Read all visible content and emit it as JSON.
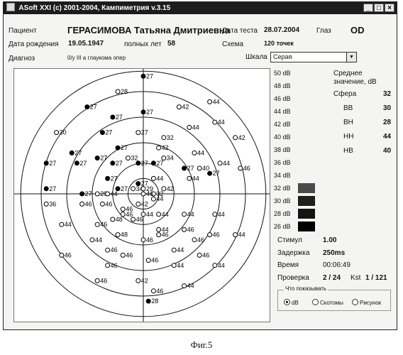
{
  "window": {
    "title": "ASoft XXI (c) 2001-2004, Кампиметрия v.3.15"
  },
  "patient": {
    "label": "Пациент",
    "name": "ГЕРАСИМОВА Татьяна Дмитриевна",
    "birth_label": "Дата рождения",
    "birth_date": "19.05.1947",
    "age_label": "полных лет",
    "age": "58",
    "diag_label": "Диагноз",
    "diag_value": "0/у III а глаукома опер"
  },
  "test": {
    "date_label": "Дата теста",
    "date": "28.07.2004",
    "eye_label": "Глаз",
    "eye": "OD",
    "scheme_label": "Схема",
    "scheme": "120 точек",
    "scale_label": "Шкала",
    "scale_value": "Серая"
  },
  "scale": [
    {
      "label": "50 dB"
    },
    {
      "label": "48 dB"
    },
    {
      "label": "46 dB"
    },
    {
      "label": "44 dB"
    },
    {
      "label": "42 dB"
    },
    {
      "label": "40 dB"
    },
    {
      "label": "38 dB"
    },
    {
      "label": "36 dB"
    },
    {
      "label": "34 dB"
    },
    {
      "label": "32 dB",
      "color": "#4a4a4a"
    },
    {
      "label": "30 dB",
      "color": "#1e1e1e"
    },
    {
      "label": "28 dB",
      "color": "#141414"
    },
    {
      "label": "26 dB",
      "color": "#000000"
    }
  ],
  "stats": {
    "header": "Среднее значение, dB",
    "rows": [
      {
        "label": "Сфера",
        "value": "32"
      },
      {
        "label": "ВВ",
        "value": "30"
      },
      {
        "label": "ВН",
        "value": "28"
      },
      {
        "label": "НН",
        "value": "44"
      },
      {
        "label": "НВ",
        "value": "40"
      }
    ]
  },
  "info": {
    "stimul_label": "Стимул",
    "stimul": "1.00",
    "delay_label": "Задержка",
    "delay": "250ms",
    "time_label": "Время",
    "time": "00:06:49",
    "check_label": "Проверка",
    "check": "2 / 24",
    "kst_label": "Kst",
    "kst": "1 / 121"
  },
  "display_options": {
    "title": "Что показывать",
    "options": [
      {
        "label": "dB",
        "selected": true
      },
      {
        "label": "Скотомы",
        "selected": false
      },
      {
        "label": "Рисунок",
        "selected": false
      }
    ]
  },
  "caption": "Фиг.5",
  "field_points": [
    {
      "x": 0,
      "y": -23,
      "v": "27",
      "f": 1
    },
    {
      "x": 0,
      "y": -16,
      "v": "27",
      "f": 1
    },
    {
      "x": -6,
      "y": -15,
      "v": "27",
      "f": 1
    },
    {
      "x": -5,
      "y": -20,
      "v": "28",
      "f": 0
    },
    {
      "x": 7,
      "y": -17,
      "v": "42",
      "f": 0
    },
    {
      "x": 13,
      "y": -18,
      "v": "44",
      "f": 0
    },
    {
      "x": -11,
      "y": -17,
      "v": "27",
      "f": 1
    },
    {
      "x": -17,
      "y": -12,
      "v": "30",
      "f": 0
    },
    {
      "x": -14,
      "y": -8,
      "v": "27",
      "f": 1
    },
    {
      "x": -8,
      "y": -12,
      "v": "27",
      "f": 1
    },
    {
      "x": -1,
      "y": -12,
      "v": "27",
      "f": 0
    },
    {
      "x": 4,
      "y": -11,
      "v": "32",
      "f": 0
    },
    {
      "x": 3,
      "y": -9,
      "v": "42",
      "f": 0
    },
    {
      "x": 9,
      "y": -13,
      "v": "44",
      "f": 0
    },
    {
      "x": 14,
      "y": -14,
      "v": "44",
      "f": 0
    },
    {
      "x": 18,
      "y": -11,
      "v": "42",
      "f": 0
    },
    {
      "x": -9,
      "y": -7,
      "v": "27",
      "f": 1
    },
    {
      "x": -5,
      "y": -9,
      "v": "27",
      "f": 1
    },
    {
      "x": -3,
      "y": -7,
      "v": "32",
      "f": 0
    },
    {
      "x": -6,
      "y": -6,
      "v": "27",
      "f": 1
    },
    {
      "x": 4,
      "y": -7,
      "v": "34",
      "f": 0
    },
    {
      "x": 10,
      "y": -8,
      "v": "44",
      "f": 0
    },
    {
      "x": 11,
      "y": -5,
      "v": "40",
      "f": 0
    },
    {
      "x": 15,
      "y": -6,
      "v": "44",
      "f": 0
    },
    {
      "x": 19,
      "y": -5,
      "v": "46",
      "f": 0
    },
    {
      "x": -13,
      "y": -6,
      "v": "27",
      "f": 1
    },
    {
      "x": -1,
      "y": -6,
      "v": "27",
      "f": 1
    },
    {
      "x": 2,
      "y": -6,
      "v": "27",
      "f": 1
    },
    {
      "x": 8,
      "y": -5,
      "v": "27",
      "f": 1
    },
    {
      "x": 13,
      "y": -4,
      "v": "27",
      "f": 1
    },
    {
      "x": -19,
      "y": -6,
      "v": "27",
      "f": 1
    },
    {
      "x": -7,
      "y": -3,
      "v": "27",
      "f": 1
    },
    {
      "x": -5,
      "y": -1,
      "v": "27",
      "f": 1
    },
    {
      "x": -1,
      "y": -2,
      "v": "27",
      "f": 1
    },
    {
      "x": 2,
      "y": -3,
      "v": "44",
      "f": 0
    },
    {
      "x": 4,
      "y": -1,
      "v": "42",
      "f": 0
    },
    {
      "x": 9,
      "y": -3,
      "v": "44",
      "f": 0
    },
    {
      "x": -19,
      "y": -1,
      "v": "27",
      "f": 1
    },
    {
      "x": -12,
      "y": 0,
      "v": "27",
      "f": 1
    },
    {
      "x": -9,
      "y": 0,
      "v": "29",
      "f": 0
    },
    {
      "x": -7,
      "y": 0,
      "v": "44",
      "f": 0
    },
    {
      "x": -2,
      "y": -1,
      "v": "34",
      "f": 0
    },
    {
      "x": 0,
      "y": -1,
      "v": "29",
      "f": 0
    },
    {
      "x": 2,
      "y": 0,
      "v": "32",
      "f": 0
    },
    {
      "x": 0,
      "y": 0,
      "v": "46",
      "f": 0
    },
    {
      "x": 2,
      "y": 1,
      "v": "44",
      "f": 0
    },
    {
      "x": -1,
      "y": 2,
      "v": "42",
      "f": 0
    },
    {
      "x": -19,
      "y": 2,
      "v": "36",
      "f": 0
    },
    {
      "x": -12,
      "y": 2,
      "v": "46",
      "f": 0
    },
    {
      "x": -8,
      "y": 2,
      "v": "46",
      "f": 0
    },
    {
      "x": -4,
      "y": 3,
      "v": "46",
      "f": 0
    },
    {
      "x": -4,
      "y": 4,
      "v": "46",
      "f": 0
    },
    {
      "x": 0,
      "y": 4,
      "v": "44",
      "f": 0
    },
    {
      "x": 3,
      "y": 4,
      "v": "44",
      "f": 0
    },
    {
      "x": 8,
      "y": 4,
      "v": "44",
      "f": 0
    },
    {
      "x": 14,
      "y": 4,
      "v": "44",
      "f": 0
    },
    {
      "x": -6,
      "y": 5,
      "v": "48",
      "f": 0
    },
    {
      "x": -2,
      "y": 5,
      "v": "46",
      "f": 0
    },
    {
      "x": 3,
      "y": 7,
      "v": "44",
      "f": 0
    },
    {
      "x": -16,
      "y": 6,
      "v": "44",
      "f": 0
    },
    {
      "x": -9,
      "y": 6,
      "v": "46",
      "f": 0
    },
    {
      "x": -5,
      "y": 8,
      "v": "48",
      "f": 0
    },
    {
      "x": 0,
      "y": 9,
      "v": "46",
      "f": 0
    },
    {
      "x": 3,
      "y": 8,
      "v": "46",
      "f": 0
    },
    {
      "x": 8,
      "y": 7,
      "v": "46",
      "f": 0
    },
    {
      "x": 13,
      "y": 8,
      "v": "46",
      "f": 0
    },
    {
      "x": 18,
      "y": 8,
      "v": "44",
      "f": 0
    },
    {
      "x": 10,
      "y": 9,
      "v": "46",
      "f": 0
    },
    {
      "x": -10,
      "y": 9,
      "v": "44",
      "f": 0
    },
    {
      "x": -7,
      "y": 11,
      "v": "46",
      "f": 0
    },
    {
      "x": -4,
      "y": 12,
      "v": "46",
      "f": 0
    },
    {
      "x": 1,
      "y": 13,
      "v": "46",
      "f": 0
    },
    {
      "x": 6,
      "y": 11,
      "v": "44",
      "f": 0
    },
    {
      "x": 11,
      "y": 12,
      "v": "46",
      "f": 0
    },
    {
      "x": -16,
      "y": 12,
      "v": "46",
      "f": 0
    },
    {
      "x": -7,
      "y": 14,
      "v": "46",
      "f": 0
    },
    {
      "x": -1,
      "y": 17,
      "v": "42",
      "f": 0
    },
    {
      "x": 6,
      "y": 14,
      "v": "44",
      "f": 0
    },
    {
      "x": 14,
      "y": 14,
      "v": "44",
      "f": 0
    },
    {
      "x": -9,
      "y": 17,
      "v": "46",
      "f": 0
    },
    {
      "x": 2,
      "y": 19,
      "v": "46",
      "f": 0
    },
    {
      "x": 8,
      "y": 18,
      "v": "44",
      "f": 0
    },
    {
      "x": 1,
      "y": 21,
      "v": "28",
      "f": 1
    }
  ]
}
